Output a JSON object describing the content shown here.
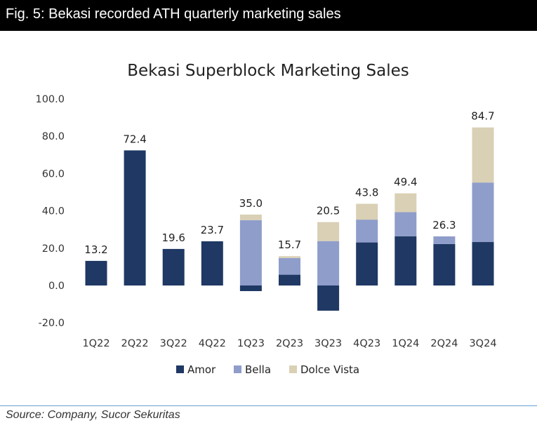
{
  "header": {
    "title": "Fig. 5: Bekasi recorded ATH quarterly marketing sales"
  },
  "source": "Source: Company, Sucor Sekuritas",
  "chart_data": {
    "type": "bar",
    "stacked": true,
    "title": "Bekasi Superblock Marketing Sales",
    "xlabel": "",
    "ylabel": "",
    "ylim": [
      -20,
      100
    ],
    "yticks": [
      "100.0",
      "80.0",
      "60.0",
      "40.0",
      "20.0",
      "0.0",
      "-20.0"
    ],
    "yticks_values": [
      100,
      80,
      60,
      40,
      20,
      0,
      -20
    ],
    "grid": false,
    "legend_position": "bottom",
    "categories": [
      "1Q22",
      "2Q22",
      "3Q22",
      "4Q22",
      "1Q23",
      "2Q23",
      "3Q23",
      "4Q23",
      "1Q24",
      "2Q24",
      "3Q24"
    ],
    "series": [
      {
        "name": "Amor",
        "color": "#1f3864",
        "values": [
          13.2,
          72.4,
          19.6,
          23.7,
          -3.0,
          5.8,
          -13.5,
          23.1,
          26.4,
          22.2,
          23.3
        ]
      },
      {
        "name": "Bella",
        "color": "#8f9dcb",
        "values": [
          0,
          0,
          0,
          0,
          35.0,
          8.9,
          23.8,
          12.2,
          12.9,
          4.1,
          31.9
        ]
      },
      {
        "name": "Dolce Vista",
        "color": "#d9d0b5",
        "values": [
          0,
          0,
          0,
          0,
          3.0,
          1.0,
          10.2,
          8.5,
          10.1,
          0,
          29.5
        ]
      }
    ],
    "total_labels": [
      "13.2",
      "72.4",
      "19.6",
      "23.7",
      "35.0",
      "15.7",
      "20.5",
      "43.8",
      "49.4",
      "26.3",
      "84.7"
    ]
  }
}
